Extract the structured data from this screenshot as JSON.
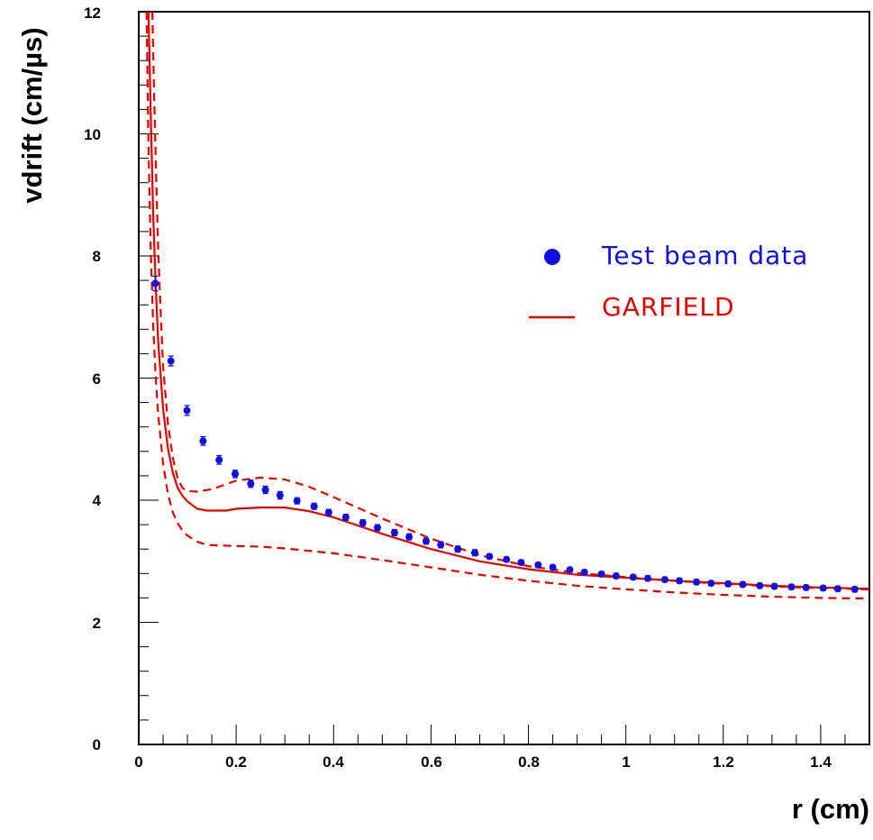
{
  "chart_data": {
    "type": "scatter",
    "xlabel": "r (cm)",
    "ylabel": "vdrift (cm/µs)",
    "xlim": [
      0,
      1.5
    ],
    "ylim": [
      0,
      12
    ],
    "x_ticks": [
      0,
      0.2,
      0.4,
      0.6,
      0.8,
      1,
      1.2,
      1.4
    ],
    "x_tick_labels": [
      "0",
      "0.2",
      "0.4",
      "0.6",
      "0.8",
      "1",
      "1.2",
      "1.4"
    ],
    "y_ticks": [
      0,
      2,
      4,
      6,
      8,
      10,
      12
    ],
    "y_tick_labels": [
      "0",
      "2",
      "4",
      "6",
      "8",
      "10",
      "12"
    ],
    "grid": false,
    "legend_position": "top-right",
    "series": [
      {
        "name": "Test beam data",
        "kind": "points",
        "color": "#1010e0",
        "x": [
          0.034,
          0.066,
          0.099,
          0.132,
          0.165,
          0.198,
          0.23,
          0.26,
          0.29,
          0.325,
          0.36,
          0.39,
          0.425,
          0.46,
          0.49,
          0.525,
          0.555,
          0.59,
          0.62,
          0.655,
          0.69,
          0.72,
          0.755,
          0.785,
          0.82,
          0.85,
          0.885,
          0.915,
          0.95,
          0.98,
          1.015,
          1.045,
          1.08,
          1.11,
          1.145,
          1.175,
          1.21,
          1.24,
          1.275,
          1.305,
          1.34,
          1.37,
          1.405,
          1.435,
          1.47
        ],
        "y": [
          7.55,
          6.28,
          5.47,
          4.97,
          4.66,
          4.43,
          4.27,
          4.17,
          4.08,
          3.99,
          3.9,
          3.8,
          3.72,
          3.63,
          3.55,
          3.47,
          3.4,
          3.33,
          3.27,
          3.2,
          3.14,
          3.08,
          3.03,
          2.98,
          2.94,
          2.9,
          2.86,
          2.82,
          2.79,
          2.76,
          2.74,
          2.72,
          2.7,
          2.68,
          2.66,
          2.64,
          2.63,
          2.62,
          2.6,
          2.59,
          2.58,
          2.57,
          2.56,
          2.55,
          2.54
        ],
        "yerr": [
          0.12,
          0.08,
          0.08,
          0.07,
          0.07,
          0.06,
          0.06,
          0.06,
          0.06,
          0.05,
          0.05,
          0.05,
          0.05,
          0.05,
          0.05,
          0.05,
          0.05,
          0.05,
          0.05,
          0.05,
          0.05,
          0.04,
          0.04,
          0.04,
          0.04,
          0.04,
          0.04,
          0.04,
          0.04,
          0.04,
          0.04,
          0.04,
          0.04,
          0.04,
          0.04,
          0.04,
          0.04,
          0.04,
          0.04,
          0.04,
          0.04,
          0.04,
          0.04,
          0.04,
          0.04
        ]
      },
      {
        "name": "GARFIELD",
        "kind": "line",
        "color": "#e00000",
        "dash": "solid",
        "x": [
          0.02,
          0.025,
          0.03,
          0.035,
          0.04,
          0.05,
          0.06,
          0.07,
          0.08,
          0.09,
          0.1,
          0.12,
          0.14,
          0.16,
          0.18,
          0.2,
          0.25,
          0.3,
          0.35,
          0.4,
          0.5,
          0.6,
          0.7,
          0.8,
          0.9,
          1.0,
          1.1,
          1.2,
          1.3,
          1.4,
          1.5
        ],
        "y": [
          12.0,
          10.2,
          8.6,
          7.5,
          6.6,
          5.5,
          4.85,
          4.45,
          4.2,
          4.07,
          3.98,
          3.86,
          3.83,
          3.83,
          3.83,
          3.86,
          3.88,
          3.88,
          3.82,
          3.72,
          3.45,
          3.2,
          3.0,
          2.87,
          2.78,
          2.73,
          2.68,
          2.64,
          2.6,
          2.57,
          2.55
        ]
      },
      {
        "name": "",
        "kind": "line",
        "color": "#e00000",
        "dash": "dashed",
        "x": [
          0.028,
          0.032,
          0.036,
          0.04,
          0.045,
          0.05,
          0.06,
          0.07,
          0.08,
          0.09,
          0.1,
          0.12,
          0.15,
          0.2,
          0.25,
          0.3,
          0.35,
          0.4,
          0.5,
          0.6,
          0.7,
          0.8,
          0.9,
          1.0,
          1.1,
          1.2,
          1.3,
          1.4,
          1.5
        ],
        "y": [
          12.0,
          10.5,
          9.2,
          8.1,
          7.1,
          6.2,
          5.25,
          4.7,
          4.35,
          4.2,
          4.15,
          4.14,
          4.18,
          4.32,
          4.37,
          4.34,
          4.22,
          4.05,
          3.7,
          3.37,
          3.1,
          2.92,
          2.81,
          2.74,
          2.68,
          2.63,
          2.59,
          2.56,
          2.54
        ]
      },
      {
        "name": "",
        "kind": "line",
        "color": "#e00000",
        "dash": "dashed",
        "x": [
          0.016,
          0.02,
          0.025,
          0.03,
          0.035,
          0.04,
          0.05,
          0.06,
          0.07,
          0.08,
          0.09,
          0.1,
          0.12,
          0.14,
          0.16,
          0.2,
          0.25,
          0.3,
          0.4,
          0.5,
          0.6,
          0.7,
          0.8,
          0.9,
          1.0,
          1.1,
          1.2,
          1.3,
          1.4,
          1.5
        ],
        "y": [
          12.0,
          9.8,
          8.0,
          6.8,
          6.0,
          5.4,
          4.6,
          4.1,
          3.8,
          3.62,
          3.5,
          3.42,
          3.32,
          3.27,
          3.26,
          3.25,
          3.24,
          3.21,
          3.13,
          3.02,
          2.9,
          2.78,
          2.68,
          2.6,
          2.54,
          2.49,
          2.45,
          2.42,
          2.4,
          2.39
        ]
      }
    ]
  }
}
